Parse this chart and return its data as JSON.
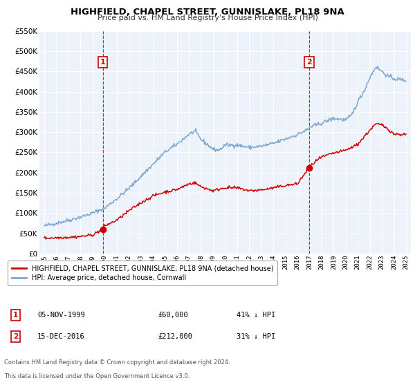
{
  "title": "HIGHFIELD, CHAPEL STREET, GUNNISLAKE, PL18 9NA",
  "subtitle": "Price paid vs. HM Land Registry's House Price Index (HPI)",
  "legend_label_red": "HIGHFIELD, CHAPEL STREET, GUNNISLAKE, PL18 9NA (detached house)",
  "legend_label_blue": "HPI: Average price, detached house, Cornwall",
  "sale1_label": "1",
  "sale1_date": "05-NOV-1999",
  "sale1_price": "£60,000",
  "sale1_hpi": "41% ↓ HPI",
  "sale1_year": 1999.85,
  "sale1_value": 60000,
  "sale2_label": "2",
  "sale2_date": "15-DEC-2016",
  "sale2_price": "£212,000",
  "sale2_hpi": "31% ↓ HPI",
  "sale2_year": 2016.96,
  "sale2_value": 212000,
  "footer1": "Contains HM Land Registry data © Crown copyright and database right 2024.",
  "footer2": "This data is licensed under the Open Government Licence v3.0.",
  "ylim": [
    0,
    550000
  ],
  "yticks": [
    0,
    50000,
    100000,
    150000,
    200000,
    250000,
    300000,
    350000,
    400000,
    450000,
    500000,
    550000
  ],
  "xlim_start": 1994.6,
  "xlim_end": 2025.4,
  "red_color": "#cc0000",
  "blue_color": "#7aa8d4",
  "vline_color": "#cc0000",
  "bg_color": "#eef2fa",
  "grid_color": "#ffffff",
  "box_color": "#cc0000",
  "title_fontsize": 9.5,
  "subtitle_fontsize": 8.0
}
